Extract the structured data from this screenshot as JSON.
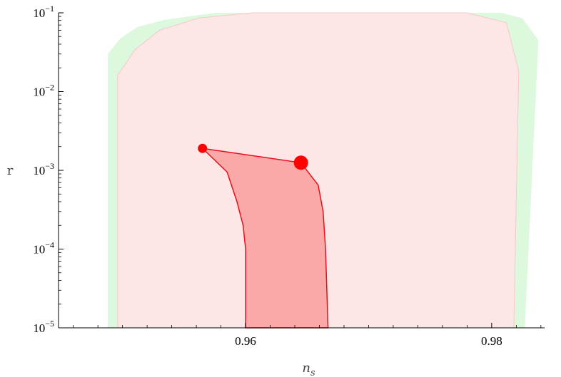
{
  "chart_data": {
    "type": "area",
    "xlabel": "n_s",
    "ylabel": "r",
    "xlim": [
      0.9448,
      0.9843
    ],
    "ylim": [
      1e-05,
      0.1
    ],
    "y_scale": "log",
    "x_ticks": [
      {
        "value": 0.96,
        "label": "0.96"
      },
      {
        "value": 0.98,
        "label": "0.98"
      }
    ],
    "y_ticks": [
      {
        "value": 1e-05,
        "base": "10",
        "exp": "−5"
      },
      {
        "value": 0.0001,
        "base": "10",
        "exp": "−4"
      },
      {
        "value": 0.001,
        "base": "10",
        "exp": "−3"
      },
      {
        "value": 0.01,
        "base": "10",
        "exp": "−2"
      },
      {
        "value": 0.1,
        "base": "10",
        "exp": "−1"
      }
    ],
    "colors": {
      "outer_region": "#ddf9dd",
      "middle_region": "#fde6e6",
      "inner_region": "#fba8a8",
      "inner_edge": "#e8101a",
      "markers": "#ff0000"
    },
    "regions": [
      {
        "id": "outer",
        "points": [
          [
            0.9488,
            1e-05
          ],
          [
            0.9488,
            0.03
          ],
          [
            0.9498,
            0.047
          ],
          [
            0.9512,
            0.066
          ],
          [
            0.9535,
            0.082
          ],
          [
            0.9575,
            0.1
          ],
          [
            0.9808,
            0.1
          ],
          [
            0.9825,
            0.085
          ],
          [
            0.9838,
            0.045
          ],
          [
            0.9827,
            1e-05
          ]
        ]
      },
      {
        "id": "middle",
        "points": [
          [
            0.9496,
            1e-05
          ],
          [
            0.9496,
            0.016
          ],
          [
            0.951,
            0.034
          ],
          [
            0.953,
            0.06
          ],
          [
            0.9562,
            0.086
          ],
          [
            0.9605,
            0.1
          ],
          [
            0.978,
            0.1
          ],
          [
            0.9812,
            0.075
          ],
          [
            0.9822,
            0.018
          ],
          [
            0.9818,
            1e-05
          ]
        ]
      },
      {
        "id": "inner",
        "points": [
          [
            0.9565,
            0.0019
          ],
          [
            0.9645,
            0.00125
          ],
          [
            0.9659,
            0.00065
          ],
          [
            0.9663,
            0.0003
          ],
          [
            0.9665,
            0.0001
          ],
          [
            0.9667,
            1e-05
          ],
          [
            0.96,
            1e-05
          ],
          [
            0.96,
            0.0001
          ],
          [
            0.9598,
            0.0002
          ],
          [
            0.9593,
            0.0004
          ],
          [
            0.9585,
            0.00095
          ]
        ]
      }
    ],
    "points": [
      {
        "x": 0.9565,
        "y": 0.0019,
        "size": "small"
      },
      {
        "x": 0.9645,
        "y": 0.00125,
        "size": "large"
      }
    ]
  }
}
